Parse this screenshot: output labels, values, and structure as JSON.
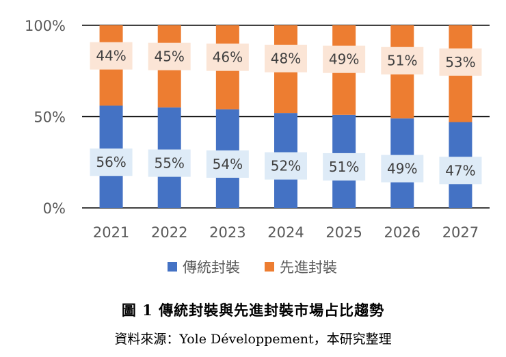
{
  "chart_data": {
    "type": "bar",
    "stacked": true,
    "normalized": true,
    "categories": [
      "2021",
      "2022",
      "2023",
      "2024",
      "2025",
      "2026",
      "2027"
    ],
    "series": [
      {
        "name": "傳統封裝",
        "values": [
          56,
          55,
          54,
          52,
          51,
          49,
          47
        ],
        "color": "#4472C4"
      },
      {
        "name": "先進封裝",
        "values": [
          44,
          45,
          46,
          48,
          49,
          51,
          53
        ],
        "color": "#ED7D31"
      }
    ],
    "y_ticks": [
      "0%",
      "50%",
      "100%"
    ],
    "ylim": [
      0,
      100
    ],
    "label_box_colors": [
      "#DEEBF7",
      "#FBE5D6"
    ],
    "legend_position": "bottom",
    "grid": true
  },
  "caption": {
    "title": "圖 1  傳統封裝與先進封裝市場占比趨勢",
    "source": "資料來源：Yole Développement，本研究整理"
  }
}
